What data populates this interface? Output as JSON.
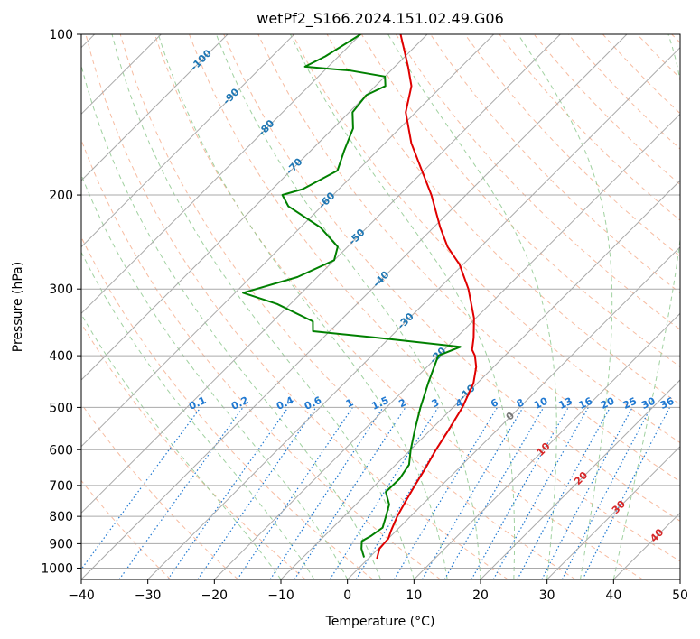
{
  "chart_data": {
    "type": "line",
    "title": "wetPf2_S166.2024.151.02.49.G06",
    "xlabel": "Temperature (°C)",
    "ylabel": "Pressure (hPa)",
    "xlim": [
      -40,
      50
    ],
    "ylim": [
      1050,
      100
    ],
    "y_scale": "log",
    "x_ticks": [
      -40,
      -30,
      -20,
      -10,
      0,
      10,
      20,
      30,
      40,
      50
    ],
    "y_ticks": [
      1000,
      900,
      800,
      700,
      600,
      500,
      400,
      300,
      200,
      100
    ],
    "skew": "skew-T log-p",
    "grid": true,
    "colors": {
      "temperature": "#e00000",
      "dewpoint": "#008000",
      "isotherm": "#aaaaaa",
      "dry_adiabat": "#f4a582",
      "moist_adiabat": "#8fc98f",
      "mixing_ratio": "#1f78d1",
      "label_blue": "#1f77b4",
      "label_red": "#d62728"
    },
    "series": [
      {
        "role": "temperature",
        "points": [
          {
            "p": 960,
            "t": 1.3
          },
          {
            "p": 920,
            "t": 0.2
          },
          {
            "p": 880,
            "t": 0.0
          },
          {
            "p": 850,
            "t": -0.8
          },
          {
            "p": 800,
            "t": -2.0
          },
          {
            "p": 750,
            "t": -3.0
          },
          {
            "p": 700,
            "t": -4.0
          },
          {
            "p": 650,
            "t": -5.0
          },
          {
            "p": 600,
            "t": -6.2
          },
          {
            "p": 550,
            "t": -7.3
          },
          {
            "p": 500,
            "t": -8.6
          },
          {
            "p": 450,
            "t": -10.6
          },
          {
            "p": 420,
            "t": -12.6
          },
          {
            "p": 400,
            "t": -14.5
          },
          {
            "p": 390,
            "t": -15.8
          },
          {
            "p": 370,
            "t": -17.4
          },
          {
            "p": 340,
            "t": -20.3
          },
          {
            "p": 300,
            "t": -25.5
          },
          {
            "p": 270,
            "t": -30.5
          },
          {
            "p": 250,
            "t": -35.0
          },
          {
            "p": 230,
            "t": -39.0
          },
          {
            "p": 200,
            "t": -45.2
          },
          {
            "p": 180,
            "t": -50.3
          },
          {
            "p": 160,
            "t": -56.0
          },
          {
            "p": 140,
            "t": -61.5
          },
          {
            "p": 125,
            "t": -64.6
          },
          {
            "p": 115,
            "t": -68.0
          },
          {
            "p": 100,
            "t": -74.0
          }
        ]
      },
      {
        "role": "dewpoint",
        "points": [
          {
            "p": 955,
            "t": -0.8
          },
          {
            "p": 920,
            "t": -2.5
          },
          {
            "p": 890,
            "t": -3.6
          },
          {
            "p": 870,
            "t": -3.0
          },
          {
            "p": 840,
            "t": -2.5
          },
          {
            "p": 800,
            "t": -3.7
          },
          {
            "p": 760,
            "t": -5.0
          },
          {
            "p": 720,
            "t": -7.4
          },
          {
            "p": 680,
            "t": -7.3
          },
          {
            "p": 640,
            "t": -8.0
          },
          {
            "p": 600,
            "t": -10.0
          },
          {
            "p": 550,
            "t": -12.4
          },
          {
            "p": 500,
            "t": -14.9
          },
          {
            "p": 450,
            "t": -17.4
          },
          {
            "p": 400,
            "t": -20.0
          },
          {
            "p": 385,
            "t": -18.0
          },
          {
            "p": 370,
            "t": -32.0
          },
          {
            "p": 360,
            "t": -42.5
          },
          {
            "p": 345,
            "t": -44.0
          },
          {
            "p": 320,
            "t": -52.0
          },
          {
            "p": 305,
            "t": -58.8
          },
          {
            "p": 285,
            "t": -53.0
          },
          {
            "p": 265,
            "t": -50.0
          },
          {
            "p": 250,
            "t": -51.5
          },
          {
            "p": 230,
            "t": -57.0
          },
          {
            "p": 210,
            "t": -65.0
          },
          {
            "p": 200,
            "t": -67.6
          },
          {
            "p": 195,
            "t": -65.4
          },
          {
            "p": 180,
            "t": -63.0
          },
          {
            "p": 165,
            "t": -65.0
          },
          {
            "p": 150,
            "t": -67.0
          },
          {
            "p": 140,
            "t": -69.5
          },
          {
            "p": 130,
            "t": -70.0
          },
          {
            "p": 125,
            "t": -68.5
          },
          {
            "p": 120,
            "t": -70.0
          },
          {
            "p": 117,
            "t": -76.0
          },
          {
            "p": 115,
            "t": -83.5
          },
          {
            "p": 110,
            "t": -82.0
          },
          {
            "p": 100,
            "t": -80.0
          }
        ]
      }
    ],
    "isotherm_labels": [
      "-100",
      "-90",
      "-80",
      "-70",
      "-60",
      "-50",
      "-40",
      "-30",
      "-20",
      "-10",
      "0",
      "10",
      "20",
      "30",
      "40"
    ],
    "mixing_ratio_labels": [
      "0.1",
      "0.2",
      "0.4",
      "0.6",
      "1",
      "1.5",
      "2",
      "3",
      "4",
      "6",
      "8",
      "10",
      "13",
      "16",
      "20",
      "25",
      "30",
      "36"
    ],
    "mixing_ratio_values": [
      0.1,
      0.2,
      0.4,
      0.6,
      1,
      1.5,
      2,
      3,
      4,
      6,
      8,
      10,
      13,
      16,
      20,
      25,
      30,
      36
    ]
  }
}
